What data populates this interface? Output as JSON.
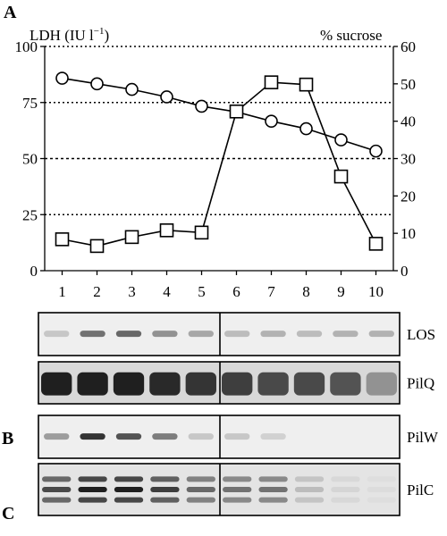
{
  "panels": {
    "a": "A",
    "b": "B",
    "c": "C"
  },
  "chart_data": {
    "type": "line",
    "x": [
      1,
      2,
      3,
      4,
      5,
      6,
      7,
      8,
      9,
      10
    ],
    "xlim": [
      0.5,
      10.5
    ],
    "left_axis": {
      "label": "LDH (IU l",
      "label_sup": "−1",
      "label_close": ")",
      "ylim": [
        0,
        100
      ],
      "ticks": [
        0,
        25,
        50,
        75,
        100
      ]
    },
    "right_axis": {
      "label": "% sucrose",
      "ylim": [
        0,
        60
      ],
      "ticks": [
        0,
        10,
        20,
        30,
        40,
        50,
        60
      ]
    },
    "grid": "horizontal dotted lines at 25, 75 and 100 (left axis)",
    "series": [
      {
        "marker": "circle",
        "axis": "right",
        "values": [
          51.5,
          50,
          48.5,
          46.5,
          44,
          42.5,
          40,
          38,
          35,
          32
        ]
      },
      {
        "marker": "square",
        "axis": "left",
        "values": [
          14,
          11,
          15,
          18,
          17,
          71,
          84,
          83,
          42,
          12
        ]
      }
    ]
  },
  "blots": [
    {
      "label": "LOS",
      "lanes": [
        0.15,
        0.55,
        0.6,
        0.4,
        0.3,
        0.2,
        0.25,
        0.2,
        0.25,
        0.25
      ]
    },
    {
      "label": "PilQ",
      "lanes": [
        0.95,
        0.95,
        0.95,
        0.9,
        0.85,
        0.8,
        0.75,
        0.75,
        0.7,
        0.4
      ]
    },
    {
      "label": "PilW",
      "lanes": [
        0.35,
        0.85,
        0.7,
        0.5,
        0.15,
        0.15,
        0.1,
        0.0,
        0.0,
        0.0
      ]
    },
    {
      "label": "PilC",
      "lanes": [
        0.75,
        0.95,
        0.95,
        0.8,
        0.6,
        0.55,
        0.55,
        0.2,
        0.08,
        0.05
      ]
    }
  ]
}
